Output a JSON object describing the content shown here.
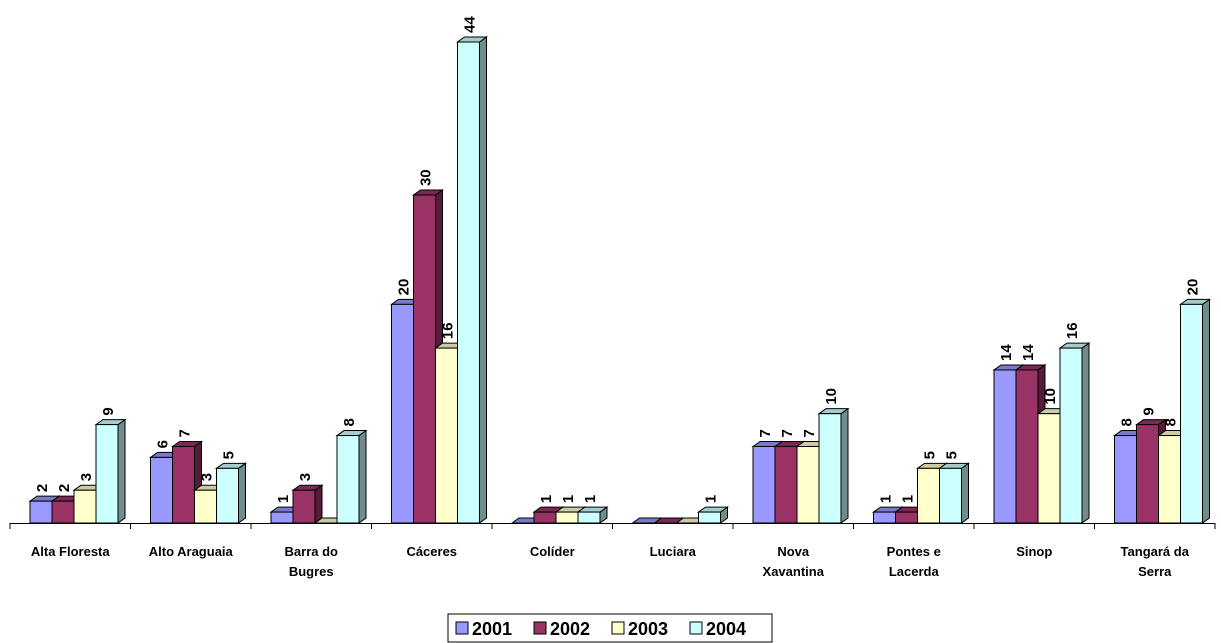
{
  "chart_data": {
    "type": "bar",
    "categories": [
      [
        "Alta Floresta"
      ],
      [
        "Alto Araguaia"
      ],
      [
        "Barra do",
        "Bugres"
      ],
      [
        "Cáceres"
      ],
      [
        "Colíder"
      ],
      [
        "Luciara"
      ],
      [
        "Nova",
        "Xavantina"
      ],
      [
        "Pontes e",
        "Lacerda"
      ],
      [
        "Sinop"
      ],
      [
        "Tangará da",
        "Serra"
      ]
    ],
    "series": [
      {
        "name": "2001",
        "color": "#9999ff",
        "values": [
          2,
          6,
          1,
          20,
          0,
          0,
          7,
          1,
          14,
          8
        ]
      },
      {
        "name": "2002",
        "color": "#993366",
        "values": [
          2,
          7,
          3,
          30,
          1,
          0,
          7,
          1,
          14,
          9
        ]
      },
      {
        "name": "2003",
        "color": "#ffffcc",
        "values": [
          3,
          3,
          0,
          16,
          1,
          0,
          7,
          5,
          10,
          8
        ]
      },
      {
        "name": "2004",
        "color": "#ccffff",
        "values": [
          9,
          5,
          8,
          44,
          1,
          1,
          10,
          5,
          16,
          20
        ]
      }
    ],
    "labels": [
      [
        "2",
        "6",
        "1",
        "20",
        "",
        "",
        "7",
        "1",
        "14",
        "8"
      ],
      [
        "2",
        "7",
        "3",
        "30",
        "1",
        "",
        "7",
        "1",
        "14",
        "9"
      ],
      [
        "3",
        "3",
        "",
        "16",
        "1",
        "",
        "7",
        "5",
        "10",
        "8"
      ],
      [
        "9",
        "5",
        "8",
        "44",
        "1",
        "1",
        "10",
        "5",
        "16",
        "20"
      ]
    ],
    "ylim": [
      0,
      44
    ],
    "bar_style": "3d",
    "legend_position": "bottom-center",
    "grid": false
  }
}
